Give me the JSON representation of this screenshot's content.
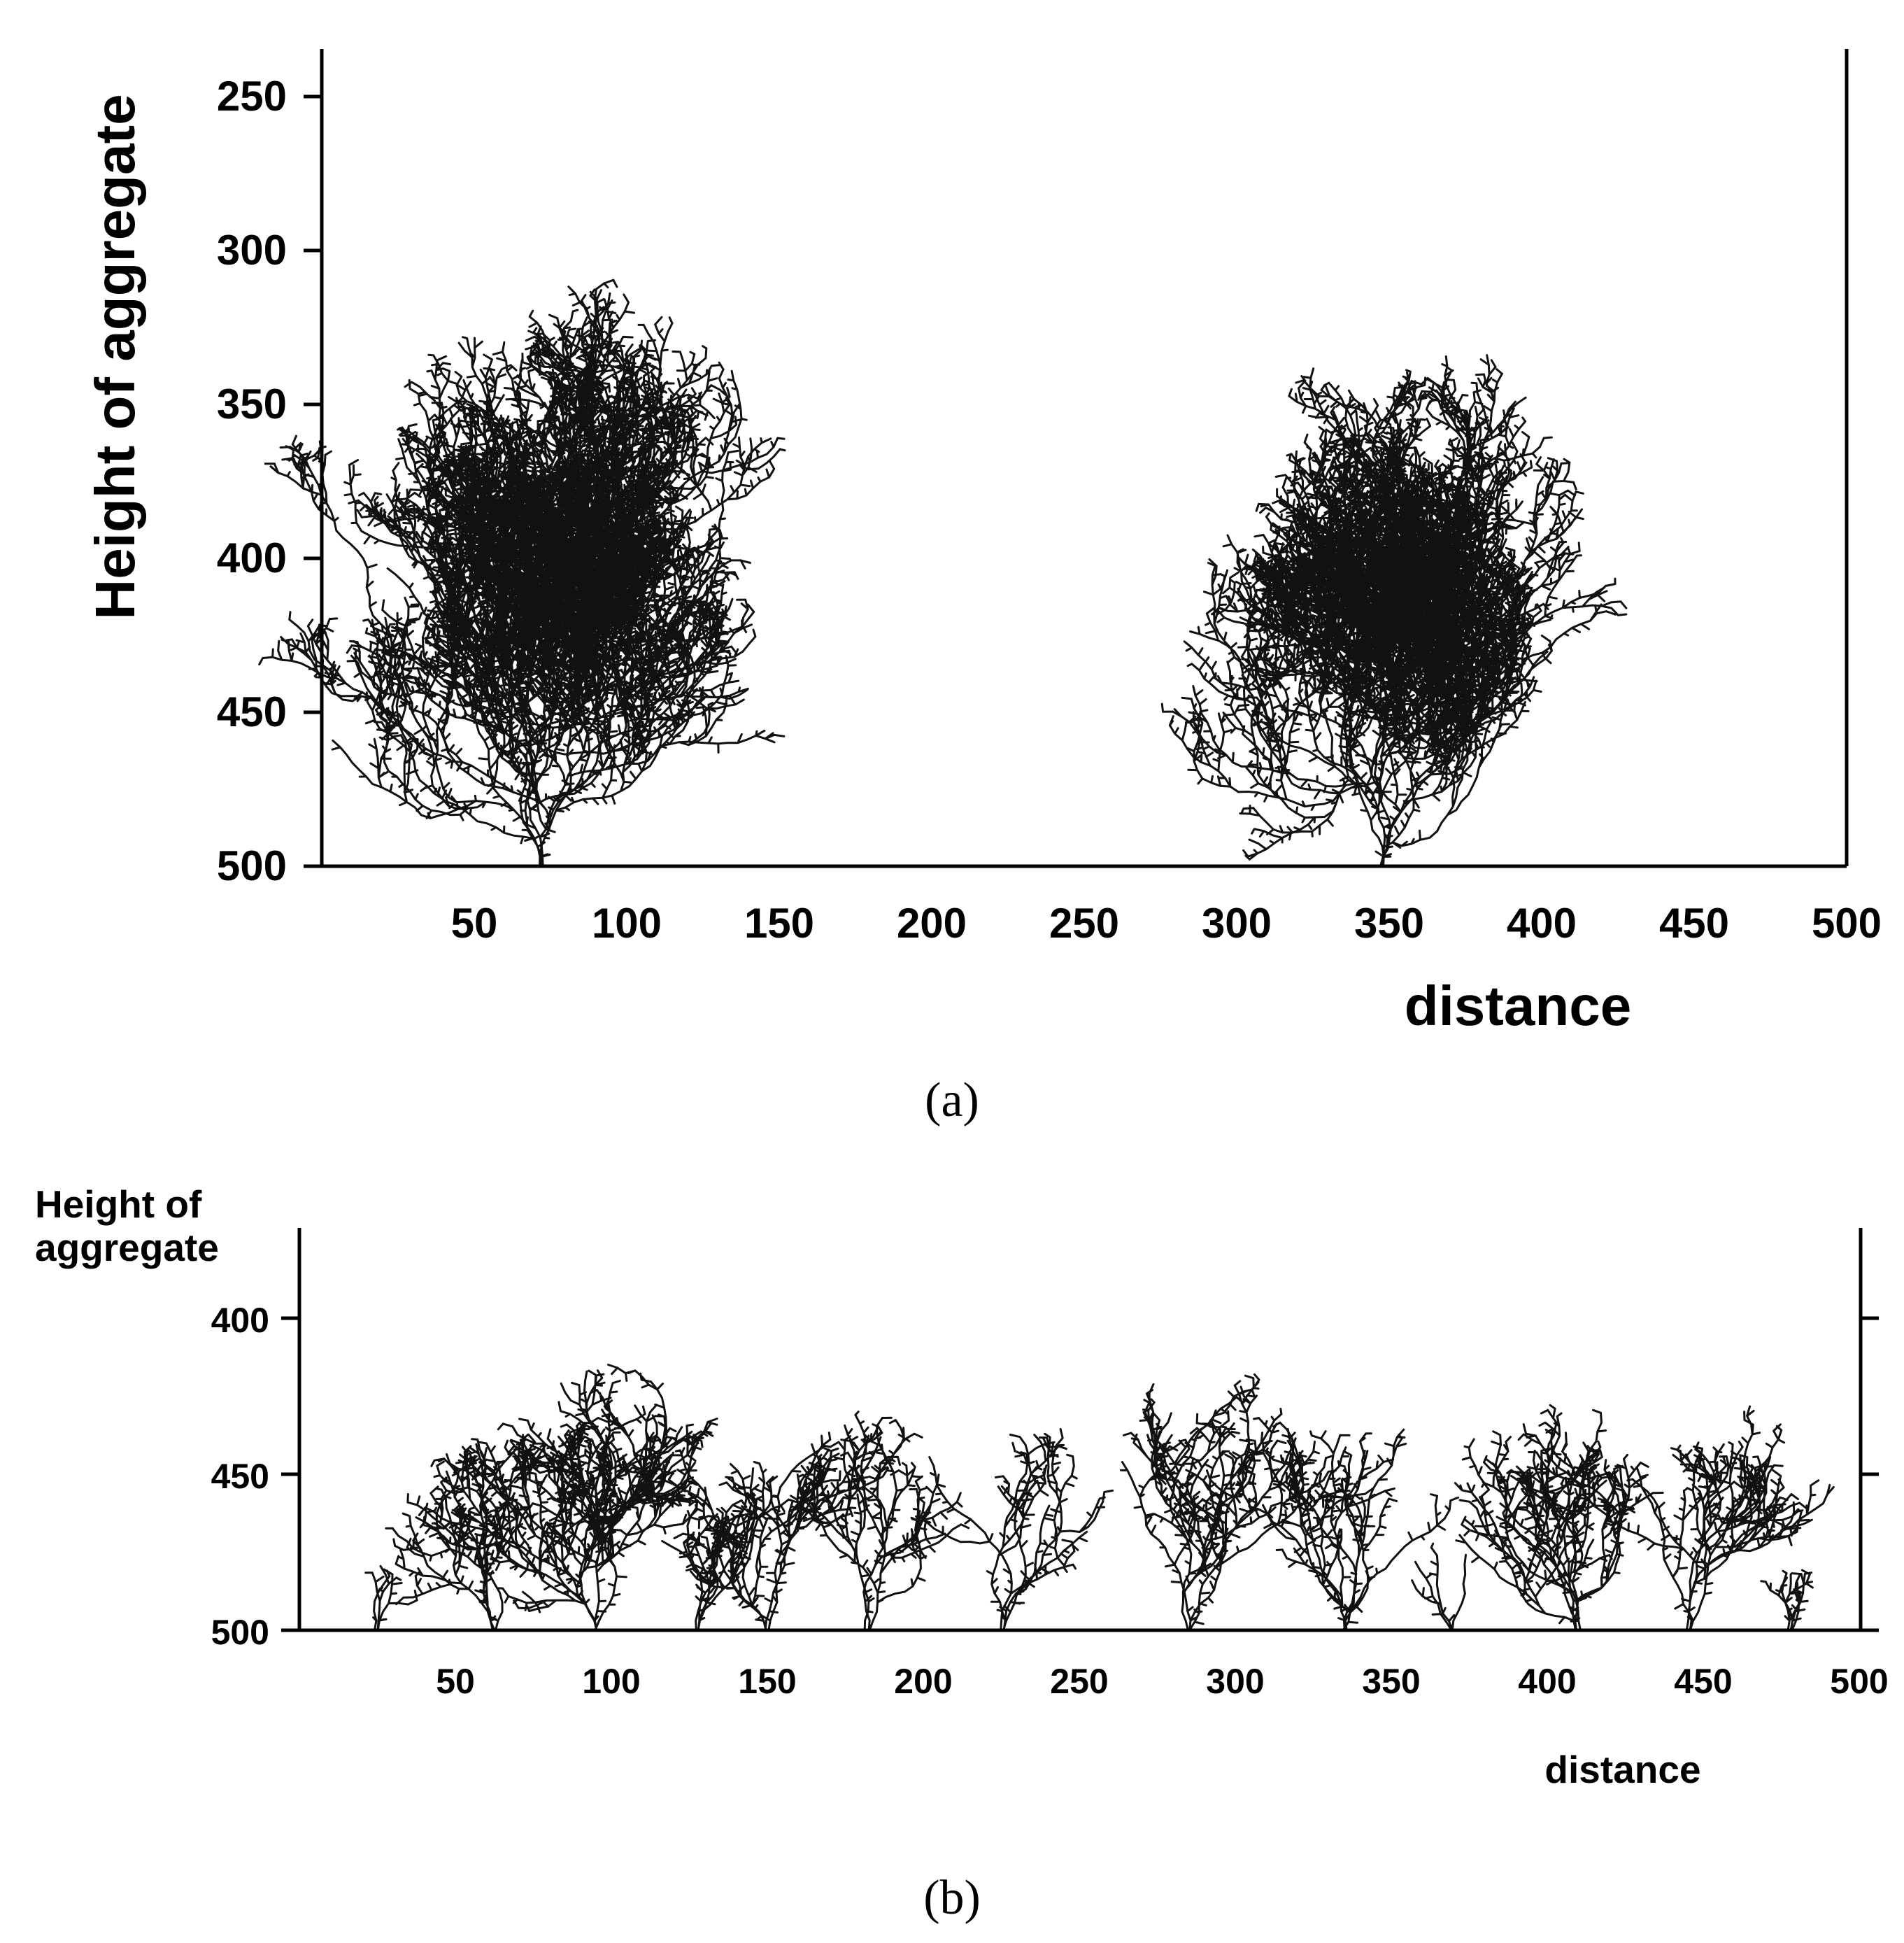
{
  "chart_data": [
    {
      "type": "scatter",
      "panel": "a",
      "xlabel": "distance",
      "ylabel": "Height of aggregate",
      "xlim": [
        0,
        500
      ],
      "ylim": [
        500,
        235
      ],
      "y_inverted": true,
      "x_ticks": [
        50,
        100,
        150,
        200,
        250,
        300,
        350,
        400,
        450,
        500
      ],
      "y_ticks": [
        250,
        300,
        350,
        400,
        450,
        500
      ],
      "aggregates": [
        {
          "base_x": 72,
          "min_height": 300,
          "x_extent": [
            22,
            140
          ]
        },
        {
          "base_x": 348,
          "min_height": 320,
          "x_extent": [
            290,
            418
          ]
        }
      ],
      "caption": "(a)"
    },
    {
      "type": "scatter",
      "panel": "b",
      "xlabel": "distance",
      "ylabel": "Height of aggregate",
      "xlim": [
        0,
        500
      ],
      "ylim": [
        500,
        372
      ],
      "y_inverted": true,
      "x_ticks": [
        50,
        100,
        150,
        200,
        250,
        300,
        350,
        400,
        450,
        500
      ],
      "y_ticks": [
        400,
        450,
        500
      ],
      "aggregates": [
        {
          "base_x": 25,
          "min_height": 480
        },
        {
          "base_x": 62,
          "min_height": 438
        },
        {
          "base_x": 95,
          "min_height": 411
        },
        {
          "base_x": 128,
          "min_height": 460
        },
        {
          "base_x": 150,
          "min_height": 434
        },
        {
          "base_x": 182,
          "min_height": 431
        },
        {
          "base_x": 225,
          "min_height": 435
        },
        {
          "base_x": 285,
          "min_height": 416
        },
        {
          "base_x": 335,
          "min_height": 433
        },
        {
          "base_x": 370,
          "min_height": 475
        },
        {
          "base_x": 410,
          "min_height": 427
        },
        {
          "base_x": 445,
          "min_height": 427
        },
        {
          "base_x": 478,
          "min_height": 490
        }
      ],
      "caption": "(b)"
    }
  ]
}
